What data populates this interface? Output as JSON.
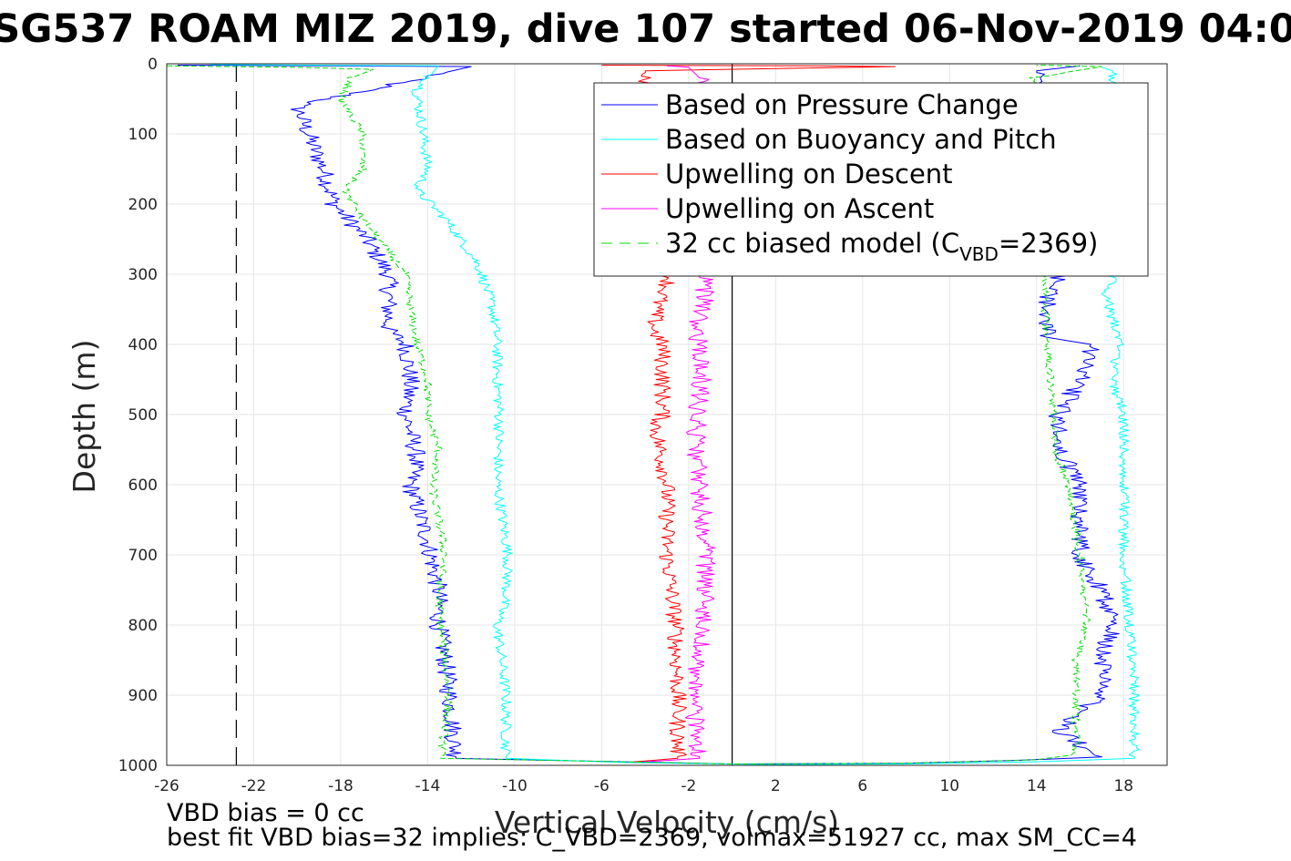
{
  "chart_data": {
    "type": "line",
    "title": "SG537 ROAM MIZ 2019, dive 107 started 06-Nov-2019 04:0",
    "xlabel": "Vertical Velocity (cm/s)",
    "ylabel": "Depth (m)",
    "xlim": [
      -26,
      20
    ],
    "ylim": [
      0,
      1000
    ],
    "y_reversed": true,
    "grid": true,
    "x_ticks": [
      -26,
      -22,
      -18,
      -14,
      -10,
      -6,
      -2,
      2,
      6,
      10,
      14,
      18
    ],
    "y_ticks": [
      0,
      100,
      200,
      300,
      400,
      500,
      600,
      700,
      800,
      900,
      1000
    ],
    "legend_position": "top-right",
    "legend": [
      {
        "label": "Based on Pressure Change",
        "color": "#0000ff",
        "style": "solid"
      },
      {
        "label": "Based on Buoyancy and Pitch",
        "color": "#00ffff",
        "style": "solid"
      },
      {
        "label": "Upwelling on Descent",
        "color": "#ff0000",
        "style": "solid"
      },
      {
        "label": "Upwelling on Ascent",
        "color": "#ff00ff",
        "style": "solid"
      },
      {
        "label": "32 cc biased model (C",
        "sub": "VBD",
        "label_suffix": "=2369)",
        "color": "#00dd00",
        "style": "dashed"
      }
    ],
    "reference_lines": [
      {
        "x": -22.8,
        "style": "dashed",
        "color": "#000000"
      },
      {
        "x": 0,
        "style": "solid",
        "color": "#000000"
      }
    ],
    "series": [
      {
        "name": "Based on Pressure Change",
        "color": "#0000ff",
        "noise": 0.45,
        "points": [
          [
            -25.5,
            2
          ],
          [
            -12,
            4
          ],
          [
            -20,
            60
          ],
          [
            -19.5,
            100
          ],
          [
            -18.8,
            150
          ],
          [
            -18.3,
            200
          ],
          [
            -16.8,
            250
          ],
          [
            -15.8,
            300
          ],
          [
            -15.8,
            380
          ],
          [
            -15,
            400
          ],
          [
            -14.8,
            450
          ],
          [
            -15,
            500
          ],
          [
            -14.5,
            560
          ],
          [
            -14.8,
            600
          ],
          [
            -14,
            680
          ],
          [
            -13.5,
            750
          ],
          [
            -13.5,
            800
          ],
          [
            -13.2,
            850
          ],
          [
            -13,
            900
          ],
          [
            -12.7,
            990
          ],
          [
            -5,
            995
          ],
          [
            0,
            998
          ],
          [
            8,
            997
          ],
          [
            13,
            993
          ],
          [
            17,
            988
          ],
          [
            15,
            950
          ],
          [
            17,
            900
          ],
          [
            17,
            850
          ],
          [
            17.5,
            800
          ],
          [
            17,
            750
          ],
          [
            16,
            700
          ],
          [
            16,
            650
          ],
          [
            16,
            600
          ],
          [
            15,
            550
          ],
          [
            15,
            500
          ],
          [
            16,
            450
          ],
          [
            16.5,
            400
          ],
          [
            14.5,
            390
          ],
          [
            14.5,
            330
          ],
          [
            15,
            310
          ],
          [
            14,
            10
          ],
          [
            16,
            3
          ]
        ]
      },
      {
        "name": "Based on Buoyancy and Pitch",
        "color": "#00ffff",
        "noise": 0.25,
        "points": [
          [
            -24,
            1
          ],
          [
            -13.5,
            3
          ],
          [
            -14.5,
            40
          ],
          [
            -14.2,
            100
          ],
          [
            -14,
            150
          ],
          [
            -14.5,
            180
          ],
          [
            -13.2,
            220
          ],
          [
            -12.5,
            250
          ],
          [
            -11.8,
            280
          ],
          [
            -11.5,
            300
          ],
          [
            -11,
            350
          ],
          [
            -10.8,
            400
          ],
          [
            -10.8,
            450
          ],
          [
            -10.7,
            500
          ],
          [
            -10.8,
            600
          ],
          [
            -10.3,
            700
          ],
          [
            -10.4,
            760
          ],
          [
            -10.8,
            800
          ],
          [
            -10.6,
            850
          ],
          [
            -10.4,
            900
          ],
          [
            -10.4,
            990
          ],
          [
            -5,
            996
          ],
          [
            2,
            999
          ],
          [
            8,
            998
          ],
          [
            14,
            995
          ],
          [
            18.5,
            990
          ],
          [
            18.5,
            900
          ],
          [
            18.3,
            800
          ],
          [
            18,
            700
          ],
          [
            18,
            600
          ],
          [
            18,
            500
          ],
          [
            17.5,
            450
          ],
          [
            17.8,
            400
          ],
          [
            17.2,
            330
          ],
          [
            17.5,
            310
          ],
          [
            17.5,
            10
          ],
          [
            17,
            5
          ]
        ]
      },
      {
        "name": "Upwelling on Descent",
        "color": "#ff0000",
        "noise": 0.4,
        "points": [
          [
            -6,
            2
          ],
          [
            4,
            3
          ],
          [
            7.5,
            4
          ],
          [
            -4,
            10
          ],
          [
            -2.8,
            300
          ],
          [
            -3.5,
            350
          ],
          [
            -3.6,
            380
          ],
          [
            -3.2,
            400
          ],
          [
            -3.2,
            500
          ],
          [
            -3.5,
            520
          ],
          [
            -3,
            600
          ],
          [
            -3,
            700
          ],
          [
            -2.6,
            800
          ],
          [
            -2.5,
            900
          ],
          [
            -2.5,
            990
          ],
          [
            -4.5,
            995
          ]
        ]
      },
      {
        "name": "Upwelling on Ascent",
        "color": "#ff00ff",
        "noise": 0.45,
        "points": [
          [
            -4,
            995
          ],
          [
            -1.5,
            990
          ],
          [
            -1.8,
            900
          ],
          [
            -1.5,
            850
          ],
          [
            -1.3,
            800
          ],
          [
            -1.2,
            700
          ],
          [
            -1.5,
            600
          ],
          [
            -1.7,
            550
          ],
          [
            -1.6,
            500
          ],
          [
            -1.4,
            450
          ],
          [
            -1.5,
            400
          ],
          [
            -1.8,
            380
          ],
          [
            -1.2,
            340
          ],
          [
            -1.3,
            300
          ],
          [
            -1.5,
            20
          ],
          [
            -2,
            5
          ],
          [
            -3,
            3
          ]
        ]
      },
      {
        "name": "32 cc biased model (CVBD=2369)",
        "color": "#00dd00",
        "dashed": true,
        "noise": 0.2,
        "points": [
          [
            -26,
            3
          ],
          [
            -20,
            5
          ],
          [
            -16.5,
            8
          ],
          [
            -17.5,
            20
          ],
          [
            -18,
            50
          ],
          [
            -17,
            100
          ],
          [
            -17,
            150
          ],
          [
            -17.8,
            180
          ],
          [
            -17,
            220
          ],
          [
            -16,
            260
          ],
          [
            -15,
            300
          ],
          [
            -14.8,
            350
          ],
          [
            -14.5,
            400
          ],
          [
            -14,
            450
          ],
          [
            -14,
            500
          ],
          [
            -13.5,
            550
          ],
          [
            -13.8,
            600
          ],
          [
            -13.5,
            650
          ],
          [
            -13.2,
            700
          ],
          [
            -13.5,
            750
          ],
          [
            -13.4,
            800
          ],
          [
            -13.2,
            850
          ],
          [
            -13,
            900
          ],
          [
            -13.4,
            990
          ],
          [
            -5,
            995
          ],
          [
            0,
            998
          ],
          [
            8,
            997
          ],
          [
            14,
            992
          ],
          [
            15.8,
            985
          ],
          [
            15.8,
            900
          ],
          [
            15.8,
            850
          ],
          [
            16.3,
            800
          ],
          [
            16,
            700
          ],
          [
            15.5,
            600
          ],
          [
            14.8,
            550
          ],
          [
            14.8,
            500
          ],
          [
            14.5,
            400
          ],
          [
            14.3,
            300
          ],
          [
            13.8,
            20
          ],
          [
            17,
            4
          ],
          [
            14,
            2
          ]
        ]
      }
    ]
  },
  "annotations": {
    "line1": "VBD bias = 0 cc",
    "line2": "best fit VBD bias=32 implies: C_VBD=2369, volmax=51927 cc, max SM_CC=4"
  }
}
